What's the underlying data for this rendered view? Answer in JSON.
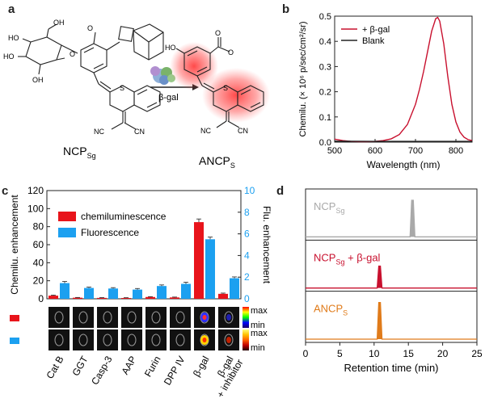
{
  "panels": {
    "a": {
      "letter": "a",
      "probe_name": "NCP",
      "probe_sub": "Sg",
      "product_name": "ANCP",
      "product_sub": "S",
      "enzyme_label": "β-gal",
      "atoms": {
        "ho": "HO",
        "oh": "OH",
        "o": "O",
        "s": "S",
        "cn": "CN",
        "nc": "NC"
      }
    },
    "b": {
      "letter": "b",
      "ylabel": "Chemilu. (× 10⁶ p/sec/cm²/sr)",
      "xlabel": "Wavelength (nm)",
      "legend": [
        "+ β-gal",
        "Blank"
      ]
    },
    "c": {
      "letter": "c",
      "ylabel_left": "Chemilu. enhancement",
      "ylabel_right": "Flu. enhancement",
      "legend": [
        "chemiluminescence",
        "Fluorescence"
      ],
      "colorbar_max": "max",
      "colorbar_min": "min",
      "categories": [
        "Cat B",
        "GGT",
        "Casp-3",
        "AAP",
        "Furin",
        "DPP IV",
        "β-gal",
        "β-gal",
        "+ inhibitor"
      ]
    },
    "d": {
      "letter": "d",
      "xlabel": "Retention time (min)",
      "trace_labels": [
        {
          "main": "NCP",
          "sub": "Sg",
          "extra": ""
        },
        {
          "main": "NCP",
          "sub": "Sg",
          "extra": " + β-gal"
        },
        {
          "main": "ANCP",
          "sub": "S",
          "extra": ""
        }
      ]
    }
  },
  "chart_data": [
    {
      "panel": "b",
      "type": "line",
      "xlabel": "Wavelength (nm)",
      "ylabel": "Chemilu. (× 10⁶ p/sec/cm²/sr)",
      "xlim": [
        500,
        840
      ],
      "ylim": [
        0,
        0.5
      ],
      "xticks": [
        500,
        600,
        700,
        800
      ],
      "yticks": [
        0.0,
        0.1,
        0.2,
        0.3,
        0.4,
        0.5
      ],
      "tick_labels_x": [
        "500",
        "600",
        "700",
        "800"
      ],
      "tick_labels_y": [
        "0.0",
        "0.1",
        "0.2",
        "0.3",
        "0.4",
        "0.5"
      ],
      "legend_position": "top-left",
      "series": [
        {
          "name": "+ β-gal",
          "color": "#c8102e",
          "x": [
            500,
            520,
            540,
            560,
            580,
            600,
            620,
            640,
            660,
            680,
            700,
            710,
            720,
            730,
            740,
            750,
            755,
            760,
            770,
            780,
            790,
            800,
            810,
            820,
            830,
            840
          ],
          "y": [
            0.012,
            0.006,
            0.003,
            0.002,
            0.002,
            0.003,
            0.006,
            0.013,
            0.03,
            0.07,
            0.15,
            0.21,
            0.28,
            0.36,
            0.44,
            0.49,
            0.495,
            0.48,
            0.39,
            0.26,
            0.15,
            0.08,
            0.04,
            0.02,
            0.01,
            0.006
          ]
        },
        {
          "name": "Blank",
          "color": "#222222",
          "x": [
            500,
            600,
            700,
            800,
            840
          ],
          "y": [
            0.004,
            0.003,
            0.003,
            0.003,
            0.003
          ]
        }
      ]
    },
    {
      "panel": "c",
      "type": "bar",
      "categories": [
        "Cat B",
        "GGT",
        "Casp-3",
        "AAP",
        "Furin",
        "DPP IV",
        "β-gal",
        "β-gal + inhibitor"
      ],
      "ylabel_left": "Chemilu. enhancement",
      "ylabel_right": "Flu. enhancement",
      "ylim_left": [
        0,
        120
      ],
      "ylim_right": [
        0,
        10
      ],
      "yticks_left": [
        0,
        20,
        40,
        60,
        80,
        100,
        120
      ],
      "yticks_right": [
        0,
        2,
        4,
        6,
        8,
        10
      ],
      "tick_labels_left": [
        "0",
        "20",
        "40",
        "60",
        "80",
        "100",
        "120"
      ],
      "tick_labels_right": [
        "0",
        "2",
        "4",
        "6",
        "8",
        "10"
      ],
      "legend_position": "top-left",
      "series": [
        {
          "name": "chemiluminescence",
          "color": "#e8141b",
          "axis": "left",
          "values": [
            3.5,
            1.2,
            1.0,
            0.9,
            2.0,
            1.5,
            85,
            5.5
          ],
          "errors": [
            0.6,
            0.3,
            0.3,
            0.3,
            0.4,
            0.4,
            3.5,
            0.8
          ]
        },
        {
          "name": "Fluorescence",
          "color": "#1ca0f0",
          "axis": "right",
          "values": [
            1.45,
            1.0,
            0.95,
            0.85,
            1.18,
            1.38,
            5.5,
            1.9
          ],
          "errors": [
            0.15,
            0.08,
            0.08,
            0.1,
            0.1,
            0.15,
            0.2,
            0.12
          ]
        }
      ]
    },
    {
      "panel": "d",
      "type": "line",
      "xlabel": "Retention time (min)",
      "xlim": [
        0,
        25
      ],
      "xticks": [
        0,
        5,
        10,
        15,
        20,
        25
      ],
      "tick_labels_x": [
        "0",
        "5",
        "10",
        "15",
        "20",
        "25"
      ],
      "series": [
        {
          "name": "NCPSg",
          "color": "#a9a9a9",
          "peak_x": 15.6,
          "peak_height": 1.0
        },
        {
          "name": "NCPSg + β-gal",
          "color": "#c8102e",
          "peak_x": 10.8,
          "peak_height": 0.6
        },
        {
          "name": "ANCPS",
          "color": "#e07b1a",
          "peak_x": 10.8,
          "peak_height": 1.0
        }
      ]
    }
  ]
}
